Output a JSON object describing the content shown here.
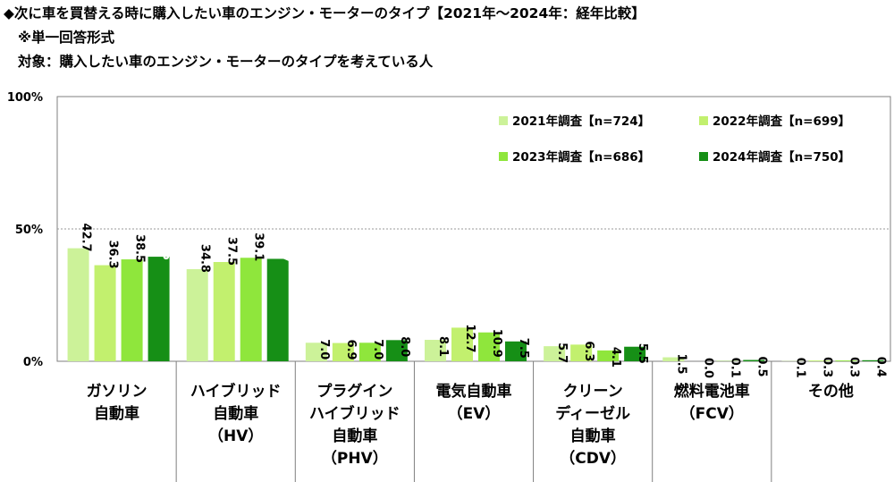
{
  "header": {
    "line1": "◆次に車を買替える時に購入したい車のエンジン・モーターのタイプ【2021年～2024年：経年比較】",
    "line2": "※単一回答形式",
    "line3": "対象：購入したい車のエンジン・モーターのタイプを考えている人"
  },
  "chart_data": {
    "type": "bar",
    "title": "次に車を買替える時に購入したい車のエンジン・モーターのタイプ【2021年～2024年：経年比較】",
    "ylim": [
      0,
      100
    ],
    "yticks": [
      "0%",
      "50%",
      "100%"
    ],
    "gridlines": [
      50
    ],
    "categories": [
      [
        "ガソリン",
        "自動車"
      ],
      [
        "ハイブリッド",
        "自動車",
        "（HV）"
      ],
      [
        "プラグイン",
        "ハイブリッド",
        "自動車",
        "（PHV）"
      ],
      [
        "電気自動車",
        "（EV）"
      ],
      [
        "クリーン",
        "ディーゼル",
        "自動車",
        "（CDV）"
      ],
      [
        "燃料電池車",
        "（FCV）"
      ],
      [
        "その他"
      ]
    ],
    "series": [
      {
        "name": "2021年調査【n=724】",
        "color": "#ccf299",
        "values": [
          42.7,
          34.8,
          7.0,
          8.1,
          5.7,
          1.5,
          0.1
        ]
      },
      {
        "name": "2022年調査【n=699】",
        "color": "#c2f06e",
        "values": [
          36.3,
          37.5,
          6.9,
          12.7,
          6.3,
          0.0,
          0.3
        ]
      },
      {
        "name": "2023年調査【n=686】",
        "color": "#8fe63c",
        "values": [
          38.5,
          39.1,
          7.0,
          10.9,
          4.1,
          0.1,
          0.3
        ]
      },
      {
        "name": "2024年調査【n=750】",
        "color": "#168f16",
        "values": [
          39.5,
          38.7,
          8.0,
          7.5,
          5.5,
          0.5,
          0.4
        ]
      }
    ]
  }
}
